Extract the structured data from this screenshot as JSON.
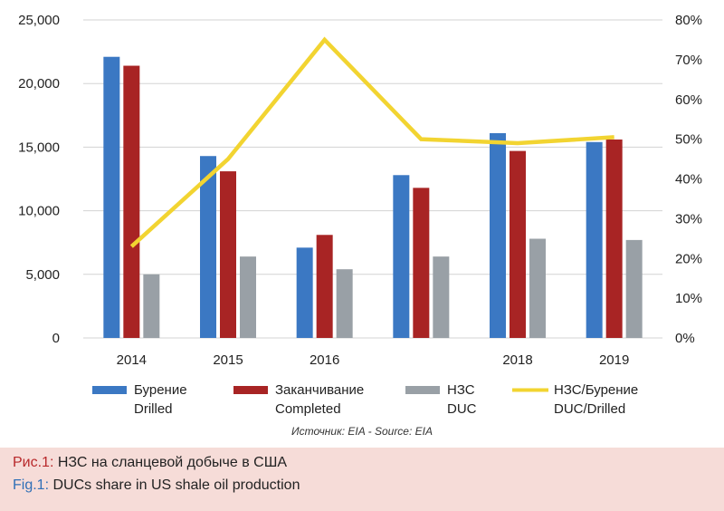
{
  "chart_data": {
    "type": "bar",
    "categories": [
      "2014",
      "2015",
      "2016",
      "",
      "2018",
      "2019"
    ],
    "series": [
      {
        "name": "Бурение / Drilled",
        "legend_line1": "Бурение",
        "legend_line2": "Drilled",
        "color": "#3b78c3",
        "axis": "left",
        "values": [
          22100,
          14300,
          7100,
          12800,
          16100,
          15400
        ]
      },
      {
        "name": "Заканчивание / Completed",
        "legend_line1": "Заканчивание",
        "legend_line2": "Completed",
        "color": "#a82424",
        "axis": "left",
        "values": [
          21400,
          13100,
          8100,
          11800,
          14700,
          15600
        ]
      },
      {
        "name": "НЗС / DUC",
        "legend_line1": "НЗС",
        "legend_line2": "DUC",
        "color": "#99a0a6",
        "axis": "left",
        "values": [
          5000,
          6400,
          5400,
          6400,
          7800,
          7700
        ]
      }
    ],
    "line_series": {
      "name": "НЗС/Бурение / DUC/Drilled",
      "legend_line1": "НЗС/Бурение",
      "legend_line2": "DUC/Drilled",
      "color": "#f2d431",
      "axis": "right",
      "values": [
        23,
        45,
        75,
        50,
        49,
        50.5
      ]
    },
    "y_left": {
      "min": 0,
      "max": 25000,
      "ticks": [
        "0",
        "5,000",
        "10,000",
        "15,000",
        "20,000",
        "25,000"
      ]
    },
    "y_right": {
      "min": 0,
      "max": 80,
      "ticks": [
        "0%",
        "10%",
        "20%",
        "30%",
        "40%",
        "50%",
        "60%",
        "70%",
        "80%"
      ]
    },
    "grid": true,
    "legend_position": "bottom"
  },
  "source": "Источник: EIA - Source: EIA",
  "caption": {
    "ru_label": "Рис.1:",
    "ru_text": " НЗС на сланцевой добыче в США",
    "en_label": "Fig.1:",
    "en_text": " DUCs share in US shale oil production"
  }
}
